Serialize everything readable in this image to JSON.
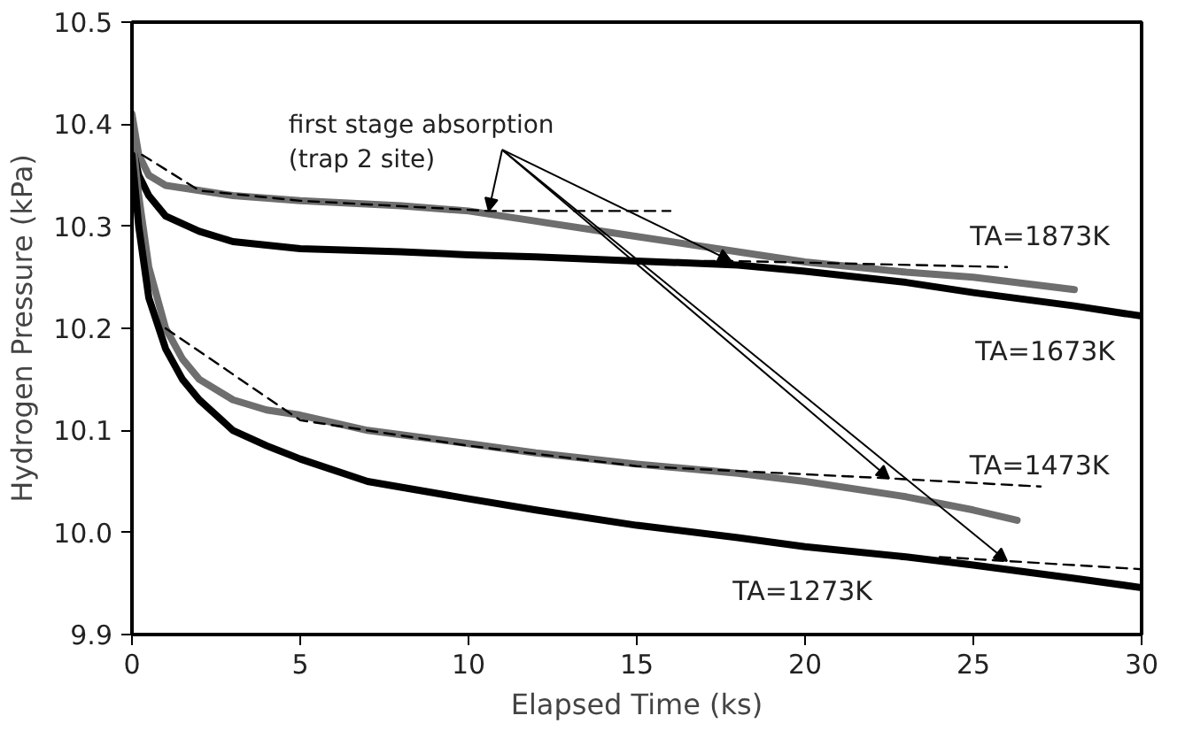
{
  "chart_data": {
    "type": "line",
    "xlabel": "Elapsed Time (ks)",
    "ylabel": "Hydrogen Pressure (kPa)",
    "xlim": [
      0,
      30
    ],
    "ylim": [
      9.9,
      10.5
    ],
    "xticks": [
      0,
      5,
      10,
      15,
      20,
      25,
      30
    ],
    "yticks": [
      9.9,
      {
        "value": 10.0,
        "label": "10.0"
      },
      10.1,
      10.2,
      10.3,
      10.4,
      10.5
    ],
    "grid": false,
    "marker": "none",
    "line_style": "solid",
    "annotations": [
      {
        "text": "first stage absorption\n(trap 2 site)",
        "x": 10.6,
        "y": 10.315
      }
    ],
    "series": [
      {
        "name": "TA=1873K",
        "color": "#6e6e6e",
        "x": [
          0,
          0.2,
          0.5,
          1,
          2,
          3,
          5,
          8,
          10,
          12,
          15,
          18,
          20,
          23,
          25,
          28
        ],
        "values": [
          10.41,
          10.37,
          10.35,
          10.34,
          10.335,
          10.33,
          10.325,
          10.32,
          10.315,
          10.305,
          10.29,
          10.275,
          10.265,
          10.255,
          10.25,
          10.238
        ]
      },
      {
        "name": "TA=1673K",
        "color": "#000000",
        "x": [
          0,
          0.2,
          0.5,
          1,
          2,
          3,
          5,
          8,
          10,
          12,
          15,
          18,
          20,
          23,
          25,
          28,
          30
        ],
        "values": [
          10.38,
          10.35,
          10.33,
          10.31,
          10.295,
          10.285,
          10.278,
          10.275,
          10.272,
          10.27,
          10.266,
          10.262,
          10.256,
          10.245,
          10.235,
          10.222,
          10.212
        ]
      },
      {
        "name": "TA=1473K",
        "color": "#6e6e6e",
        "x": [
          0,
          0.2,
          0.5,
          1,
          1.5,
          2,
          3,
          4,
          5,
          7,
          10,
          12,
          15,
          18,
          20,
          23,
          25,
          26.3
        ],
        "values": [
          10.39,
          10.33,
          10.26,
          10.2,
          10.17,
          10.15,
          10.13,
          10.12,
          10.115,
          10.1,
          10.087,
          10.078,
          10.067,
          10.058,
          10.05,
          10.035,
          10.022,
          10.012
        ]
      },
      {
        "name": "TA=1273K",
        "color": "#000000",
        "x": [
          0,
          0.2,
          0.5,
          1,
          1.5,
          2,
          3,
          4,
          5,
          7,
          10,
          12,
          15,
          18,
          20,
          23,
          25,
          28,
          30
        ],
        "values": [
          10.37,
          10.3,
          10.23,
          10.18,
          10.15,
          10.13,
          10.1,
          10.085,
          10.072,
          10.05,
          10.033,
          10.022,
          10.007,
          9.995,
          9.986,
          9.976,
          9.968,
          9.955,
          9.946
        ]
      },
      {
        "type": "line",
        "line_style": "dashed",
        "color": "#000000",
        "x": [
          0.3,
          2,
          5,
          10.6,
          16
        ],
        "values": [
          10.37,
          10.335,
          10.325,
          10.315,
          10.315
        ]
      },
      {
        "type": "line",
        "line_style": "dashed",
        "color": "#000000",
        "x": [
          17,
          17.8,
          26
        ],
        "values": [
          10.266,
          10.266,
          10.26
        ]
      },
      {
        "type": "line",
        "line_style": "dashed",
        "color": "#000000",
        "x": [
          1,
          5,
          10,
          15,
          22.5,
          27
        ],
        "values": [
          10.2,
          10.11,
          10.085,
          10.065,
          10.053,
          10.045
        ]
      },
      {
        "type": "line",
        "line_style": "dashed",
        "color": "#000000",
        "x": [
          24,
          26,
          30
        ],
        "values": [
          9.976,
          9.972,
          9.964
        ]
      }
    ]
  }
}
